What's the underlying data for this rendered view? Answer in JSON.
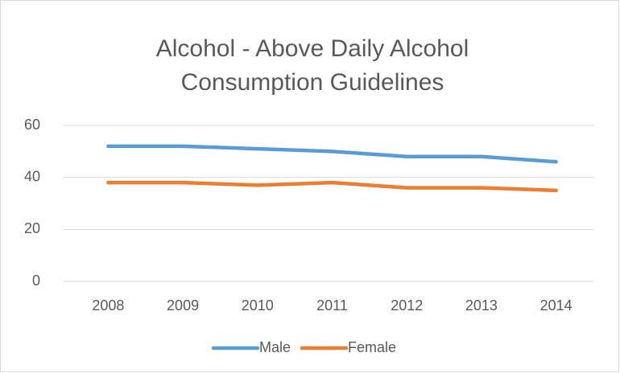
{
  "chart_data": {
    "type": "line",
    "title": "Alcohol - Above Daily Alcohol Consumption Guidelines",
    "categories": [
      "2008",
      "2009",
      "2010",
      "2011",
      "2012",
      "2013",
      "2014"
    ],
    "series": [
      {
        "name": "Male",
        "color": "#5b9bd5",
        "values": [
          52,
          52,
          51,
          50,
          48,
          48,
          46
        ]
      },
      {
        "name": "Female",
        "color": "#ed7d31",
        "values": [
          38,
          38,
          37,
          38,
          36,
          36,
          35
        ]
      }
    ],
    "ylim": [
      0,
      60
    ],
    "yticks": [
      0,
      20,
      40,
      60
    ],
    "grid": true,
    "legend": "bottom"
  }
}
